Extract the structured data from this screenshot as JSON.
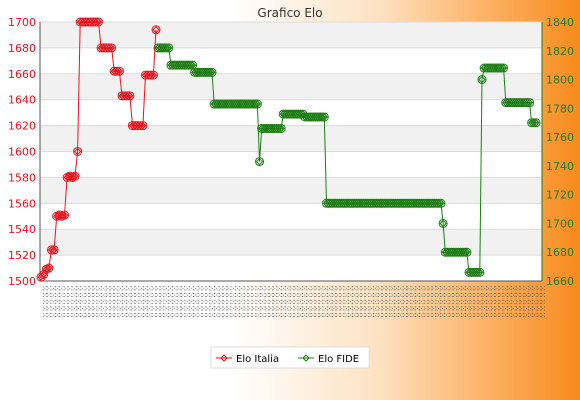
{
  "chart_data": {
    "type": "line",
    "title": "Grafico Elo",
    "xlabel": "",
    "ylabel_left": "",
    "ylabel_right": "",
    "ylim_left": [
      1500,
      1700
    ],
    "yticks_left": [
      1500,
      1520,
      1540,
      1560,
      1580,
      1600,
      1620,
      1640,
      1660,
      1680,
      1700
    ],
    "ylim_right": [
      1660,
      1840
    ],
    "yticks_right": [
      1660,
      1680,
      1700,
      1720,
      1740,
      1760,
      1780,
      1800,
      1820,
      1840
    ],
    "x_tick_labels_visible": "dense overlapping date labels, unreadable",
    "legend_position": "bottom-center",
    "grid": true,
    "series": [
      {
        "name": "Elo Italia",
        "axis": "left",
        "color": "#e8141e",
        "values": [
          1503,
          1505,
          1509,
          1510,
          1524,
          1524,
          1550,
          1551,
          1550,
          1551,
          1580,
          1581,
          1580,
          1581,
          1600,
          1700,
          1700,
          1700,
          1700,
          1700,
          1700,
          1700,
          1700,
          1680,
          1680,
          1680,
          1680,
          1680,
          1662,
          1662,
          1662,
          1643,
          1643,
          1643,
          1643,
          1620,
          1620,
          1620,
          1620,
          1620,
          1659,
          1659,
          1659,
          1659,
          1694
        ]
      },
      {
        "name": "Elo FIDE",
        "axis": "right",
        "color": "#1e7d14",
        "values": [
          1822,
          1822,
          1822,
          1822,
          1822,
          1822,
          1810,
          1810,
          1810,
          1810,
          1810,
          1810,
          1810,
          1810,
          1810,
          1810,
          1810,
          1805,
          1805,
          1805,
          1805,
          1805,
          1805,
          1805,
          1805,
          1805,
          1783,
          1783,
          1783,
          1783,
          1783,
          1783,
          1783,
          1783,
          1783,
          1783,
          1783,
          1783,
          1783,
          1783,
          1783,
          1783,
          1783,
          1783,
          1783,
          1783,
          1783,
          1743,
          1766,
          1766,
          1766,
          1766,
          1766,
          1766,
          1766,
          1766,
          1766,
          1766,
          1776,
          1776,
          1776,
          1776,
          1776,
          1776,
          1776,
          1776,
          1776,
          1776,
          1774,
          1774,
          1774,
          1774,
          1774,
          1774,
          1774,
          1774,
          1774,
          1774,
          1714,
          1714,
          1714,
          1714,
          1714,
          1714,
          1714,
          1714,
          1714,
          1714,
          1714,
          1714,
          1714,
          1714,
          1714,
          1714,
          1714,
          1714,
          1714,
          1714,
          1714,
          1714,
          1714,
          1714,
          1714,
          1714,
          1714,
          1714,
          1714,
          1714,
          1714,
          1714,
          1714,
          1714,
          1714,
          1714,
          1714,
          1714,
          1714,
          1714,
          1714,
          1714,
          1714,
          1714,
          1714,
          1714,
          1714,
          1714,
          1714,
          1714,
          1714,
          1714,
          1714,
          1714,
          1700,
          1680,
          1680,
          1680,
          1680,
          1680,
          1680,
          1680,
          1680,
          1680,
          1680,
          1680,
          1666,
          1666,
          1666,
          1666,
          1666,
          1666,
          1800,
          1808,
          1808,
          1808,
          1808,
          1808,
          1808,
          1808,
          1808,
          1808,
          1808,
          1784,
          1784,
          1784,
          1784,
          1784,
          1784,
          1784,
          1784,
          1784,
          1784,
          1784,
          1784,
          1770,
          1770,
          1770
        ]
      }
    ]
  }
}
